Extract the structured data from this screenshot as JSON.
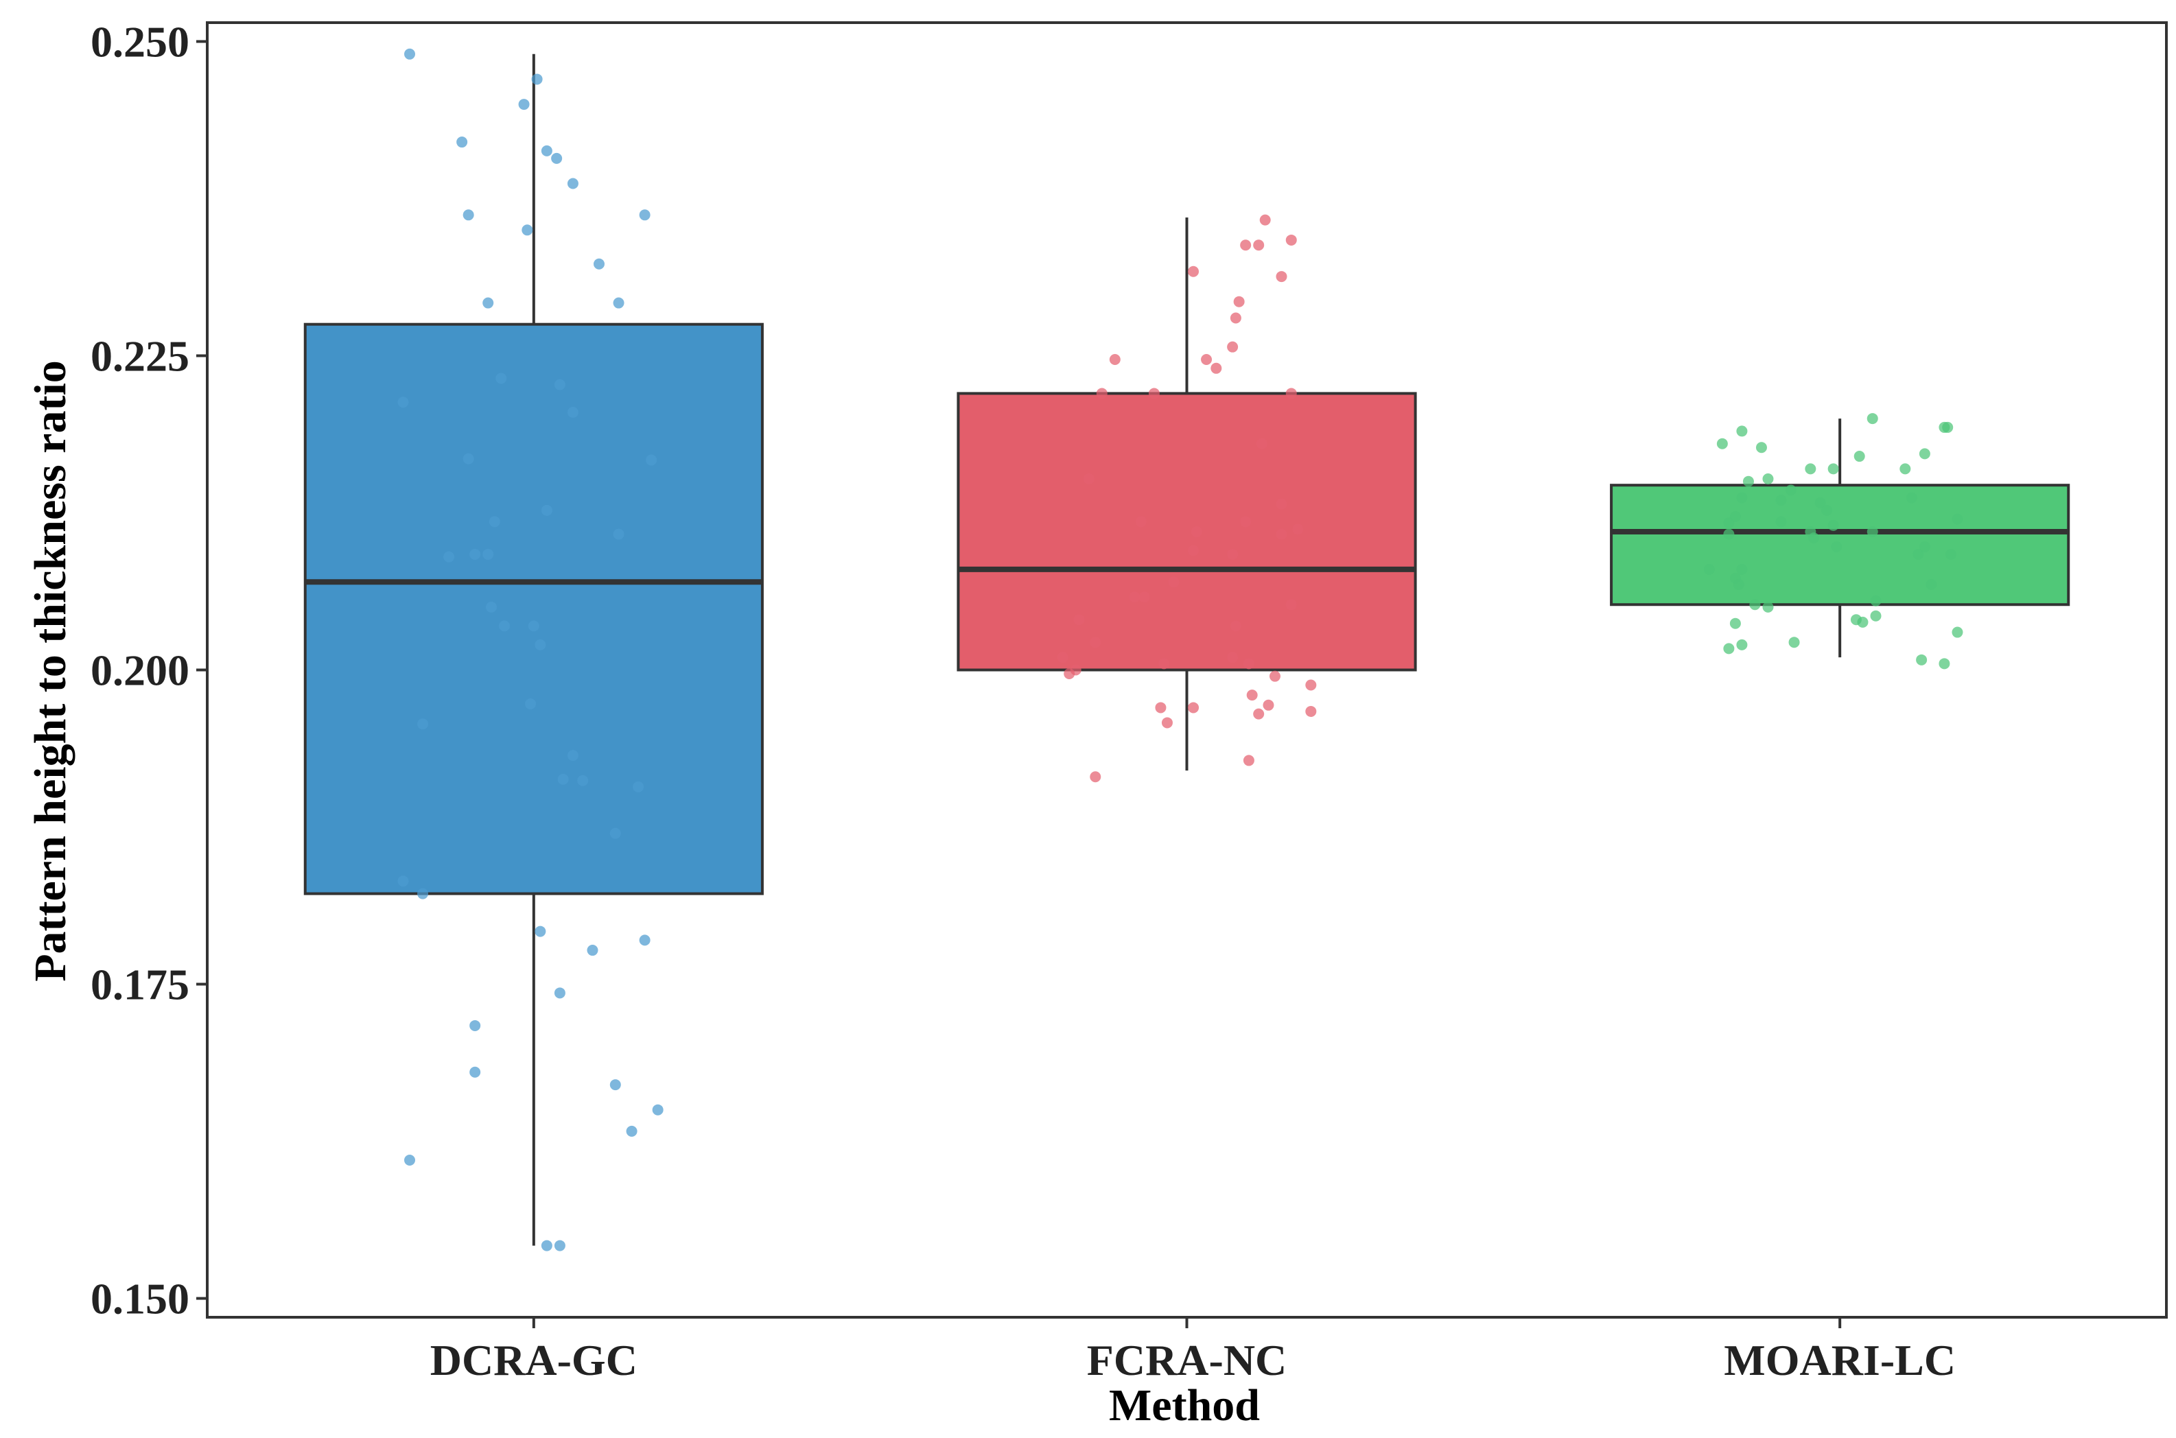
{
  "chart_data": {
    "type": "boxplot",
    "title": "",
    "xlabel": "Method",
    "ylabel": "Pattern height to thickness ratio",
    "ylim": [
      0.1485,
      0.2515
    ],
    "yticks": [
      0.15,
      0.175,
      0.2,
      0.225,
      0.25
    ],
    "ytick_labels": [
      "0.150",
      "0.175",
      "0.200",
      "0.225",
      "0.250"
    ],
    "grid": false,
    "legend": "none",
    "categories": [
      "DCRA-GC",
      "FCRA-NC",
      "MOARI-LC"
    ],
    "series": [
      {
        "name": "DCRA-GC",
        "color": "#4393C8",
        "point_color": "#4C9BD0",
        "box": {
          "whisker_low": 0.1542,
          "q1": 0.1822,
          "median": 0.207,
          "q3": 0.2275,
          "whisker_high": 0.249
        },
        "points": [
          {
            "x": -0.19,
            "y": 0.249
          },
          {
            "x": 0.005,
            "y": 0.247
          },
          {
            "x": -0.015,
            "y": 0.245
          },
          {
            "x": -0.11,
            "y": 0.242
          },
          {
            "x": 0.02,
            "y": 0.2413
          },
          {
            "x": 0.035,
            "y": 0.2407
          },
          {
            "x": 0.06,
            "y": 0.2387
          },
          {
            "x": -0.1,
            "y": 0.2362
          },
          {
            "x": -0.01,
            "y": 0.235
          },
          {
            "x": 0.17,
            "y": 0.2362
          },
          {
            "x": 0.1,
            "y": 0.2323
          },
          {
            "x": -0.07,
            "y": 0.2292
          },
          {
            "x": 0.13,
            "y": 0.2292
          },
          {
            "x": -0.2,
            "y": 0.2213
          },
          {
            "x": -0.05,
            "y": 0.2232
          },
          {
            "x": 0.04,
            "y": 0.2227
          },
          {
            "x": 0.06,
            "y": 0.2205
          },
          {
            "x": -0.1,
            "y": 0.2168
          },
          {
            "x": 0.18,
            "y": 0.2167
          },
          {
            "x": 0.02,
            "y": 0.2127
          },
          {
            "x": -0.06,
            "y": 0.2118
          },
          {
            "x": 0.13,
            "y": 0.2108
          },
          {
            "x": -0.13,
            "y": 0.209
          },
          {
            "x": -0.09,
            "y": 0.2092
          },
          {
            "x": -0.07,
            "y": 0.2092
          },
          {
            "x": -0.065,
            "y": 0.205
          },
          {
            "x": -0.045,
            "y": 0.2035
          },
          {
            "x": 0.0,
            "y": 0.2035
          },
          {
            "x": 0.01,
            "y": 0.202
          },
          {
            "x": -0.005,
            "y": 0.1973
          },
          {
            "x": -0.17,
            "y": 0.1957
          },
          {
            "x": 0.06,
            "y": 0.1932
          },
          {
            "x": 0.045,
            "y": 0.1913
          },
          {
            "x": 0.075,
            "y": 0.1912
          },
          {
            "x": 0.16,
            "y": 0.1907
          },
          {
            "x": 0.125,
            "y": 0.187
          },
          {
            "x": -0.2,
            "y": 0.1832
          },
          {
            "x": -0.17,
            "y": 0.1822
          },
          {
            "x": 0.01,
            "y": 0.1792
          },
          {
            "x": 0.09,
            "y": 0.1777
          },
          {
            "x": 0.17,
            "y": 0.1785
          },
          {
            "x": 0.04,
            "y": 0.1743
          },
          {
            "x": -0.09,
            "y": 0.1717
          },
          {
            "x": -0.09,
            "y": 0.168
          },
          {
            "x": 0.125,
            "y": 0.167
          },
          {
            "x": 0.19,
            "y": 0.165
          },
          {
            "x": 0.15,
            "y": 0.1633
          },
          {
            "x": -0.19,
            "y": 0.161
          },
          {
            "x": 0.02,
            "y": 0.1542
          },
          {
            "x": 0.04,
            "y": 0.1542
          }
        ]
      },
      {
        "name": "FCRA-NC",
        "color": "#E35E6B",
        "point_color": "#E5606F",
        "box": {
          "whisker_low": 0.192,
          "q1": 0.2,
          "median": 0.208,
          "q3": 0.222,
          "whisker_high": 0.236
        },
        "points": [
          {
            "x": 0.12,
            "y": 0.2358
          },
          {
            "x": 0.16,
            "y": 0.2342
          },
          {
            "x": 0.09,
            "y": 0.2338
          },
          {
            "x": 0.11,
            "y": 0.2338
          },
          {
            "x": 0.01,
            "y": 0.2317
          },
          {
            "x": 0.145,
            "y": 0.2313
          },
          {
            "x": 0.08,
            "y": 0.2293
          },
          {
            "x": 0.075,
            "y": 0.228
          },
          {
            "x": 0.07,
            "y": 0.2257
          },
          {
            "x": -0.11,
            "y": 0.2247
          },
          {
            "x": 0.03,
            "y": 0.2247
          },
          {
            "x": 0.045,
            "y": 0.224
          },
          {
            "x": -0.13,
            "y": 0.222
          },
          {
            "x": -0.05,
            "y": 0.222
          },
          {
            "x": 0.16,
            "y": 0.222
          },
          {
            "x": 0.115,
            "y": 0.218
          },
          {
            "x": -0.15,
            "y": 0.2152
          },
          {
            "x": 0.145,
            "y": 0.2132
          },
          {
            "x": -0.07,
            "y": 0.2118
          },
          {
            "x": 0.09,
            "y": 0.2118
          },
          {
            "x": 0.015,
            "y": 0.211
          },
          {
            "x": 0.17,
            "y": 0.2112
          },
          {
            "x": 0.145,
            "y": 0.2108
          },
          {
            "x": 0.01,
            "y": 0.2095
          },
          {
            "x": 0.07,
            "y": 0.2092
          },
          {
            "x": -0.02,
            "y": 0.207
          },
          {
            "x": -0.08,
            "y": 0.2058
          },
          {
            "x": -0.065,
            "y": 0.2058
          },
          {
            "x": 0.16,
            "y": 0.2052
          },
          {
            "x": -0.165,
            "y": 0.204
          },
          {
            "x": 0.075,
            "y": 0.2035
          },
          {
            "x": -0.14,
            "y": 0.2022
          },
          {
            "x": -0.19,
            "y": 0.201
          },
          {
            "x": 0.07,
            "y": 0.201
          },
          {
            "x": -0.035,
            "y": 0.2005
          },
          {
            "x": 0.095,
            "y": 0.2005
          },
          {
            "x": -0.17,
            "y": 0.2
          },
          {
            "x": -0.18,
            "y": 0.1997
          },
          {
            "x": 0.135,
            "y": 0.1995
          },
          {
            "x": 0.19,
            "y": 0.1988
          },
          {
            "x": 0.1,
            "y": 0.198
          },
          {
            "x": 0.125,
            "y": 0.1972
          },
          {
            "x": -0.04,
            "y": 0.197
          },
          {
            "x": 0.01,
            "y": 0.197
          },
          {
            "x": 0.11,
            "y": 0.1965
          },
          {
            "x": 0.19,
            "y": 0.1967
          },
          {
            "x": -0.03,
            "y": 0.1958
          },
          {
            "x": 0.095,
            "y": 0.1928
          },
          {
            "x": -0.14,
            "y": 0.1915
          }
        ]
      },
      {
        "name": "MOARI-LC",
        "color": "#50C878",
        "point_color": "#4CC577",
        "box": {
          "whisker_low": 0.201,
          "q1": 0.2052,
          "median": 0.211,
          "q3": 0.2147,
          "whisker_high": 0.22
        },
        "points": [
          {
            "x": 0.05,
            "y": 0.22
          },
          {
            "x": 0.16,
            "y": 0.2193
          },
          {
            "x": 0.165,
            "y": 0.2193
          },
          {
            "x": -0.15,
            "y": 0.219
          },
          {
            "x": -0.18,
            "y": 0.218
          },
          {
            "x": -0.12,
            "y": 0.2177
          },
          {
            "x": 0.03,
            "y": 0.217
          },
          {
            "x": 0.13,
            "y": 0.2172
          },
          {
            "x": -0.045,
            "y": 0.216
          },
          {
            "x": -0.01,
            "y": 0.216
          },
          {
            "x": 0.1,
            "y": 0.216
          },
          {
            "x": -0.14,
            "y": 0.215
          },
          {
            "x": -0.11,
            "y": 0.2152
          },
          {
            "x": -0.075,
            "y": 0.2143
          },
          {
            "x": -0.09,
            "y": 0.2135
          },
          {
            "x": -0.15,
            "y": 0.2137
          },
          {
            "x": 0.11,
            "y": 0.2137
          },
          {
            "x": -0.03,
            "y": 0.2133
          },
          {
            "x": -0.02,
            "y": 0.2127
          },
          {
            "x": -0.16,
            "y": 0.2122
          },
          {
            "x": -0.17,
            "y": 0.2117
          },
          {
            "x": -0.09,
            "y": 0.2118
          },
          {
            "x": -0.01,
            "y": 0.2115
          },
          {
            "x": -0.045,
            "y": 0.211
          },
          {
            "x": 0.05,
            "y": 0.211
          },
          {
            "x": 0.18,
            "y": 0.212
          },
          {
            "x": -0.17,
            "y": 0.2108
          },
          {
            "x": -0.04,
            "y": 0.2105
          },
          {
            "x": -0.005,
            "y": 0.2098
          },
          {
            "x": 0.13,
            "y": 0.2098
          },
          {
            "x": 0.12,
            "y": 0.2092
          },
          {
            "x": 0.17,
            "y": 0.2092
          },
          {
            "x": -0.15,
            "y": 0.208
          },
          {
            "x": -0.2,
            "y": 0.208
          },
          {
            "x": 0.14,
            "y": 0.2068
          },
          {
            "x": -0.16,
            "y": 0.2073
          },
          {
            "x": -0.155,
            "y": 0.2068
          },
          {
            "x": 0.055,
            "y": 0.2055
          },
          {
            "x": -0.11,
            "y": 0.205
          },
          {
            "x": -0.13,
            "y": 0.2052
          },
          {
            "x": 0.055,
            "y": 0.2043
          },
          {
            "x": 0.025,
            "y": 0.204
          },
          {
            "x": -0.16,
            "y": 0.2037
          },
          {
            "x": 0.035,
            "y": 0.2038
          },
          {
            "x": 0.18,
            "y": 0.203
          },
          {
            "x": -0.07,
            "y": 0.2022
          },
          {
            "x": -0.15,
            "y": 0.202
          },
          {
            "x": -0.17,
            "y": 0.2017
          },
          {
            "x": 0.125,
            "y": 0.2008
          },
          {
            "x": 0.16,
            "y": 0.2005
          }
        ]
      }
    ]
  }
}
